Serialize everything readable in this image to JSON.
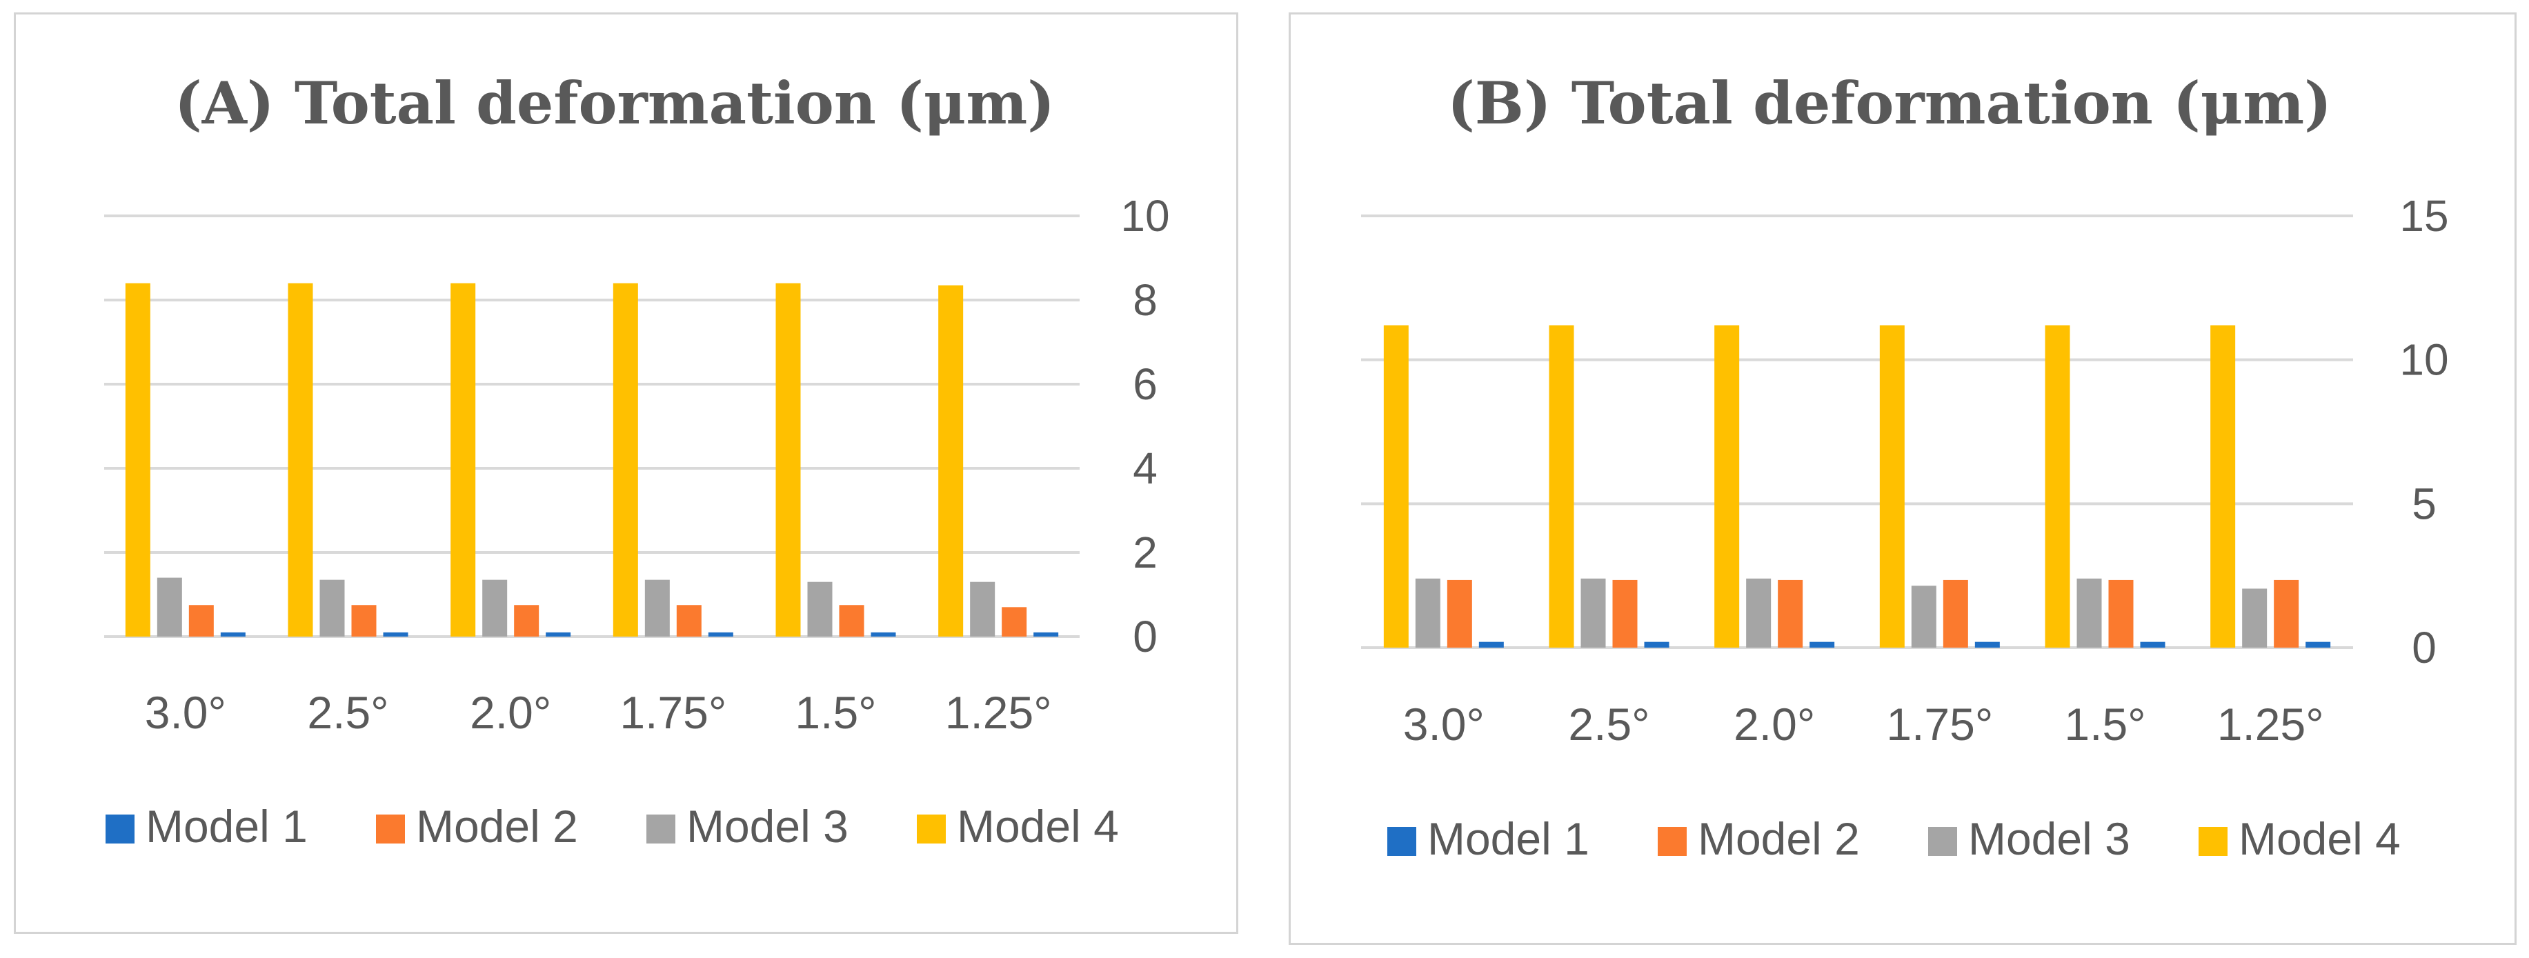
{
  "colors": {
    "Model 1": "#1f6fc5",
    "Model 2": "#fb7a2e",
    "Model 3": "#a5a5a5",
    "Model 4": "#ffc000"
  },
  "chart_data": [
    {
      "type": "bar",
      "title": "(A) Total deformation (μm)",
      "categories": [
        "3.0°",
        "2.5°",
        "2.0°",
        "1.75°",
        "1.5°",
        "1.25°"
      ],
      "series": [
        {
          "name": "Model 1",
          "values": [
            0.1,
            0.1,
            0.1,
            0.1,
            0.1,
            0.1
          ]
        },
        {
          "name": "Model 2",
          "values": [
            0.75,
            0.75,
            0.75,
            0.75,
            0.75,
            0.7
          ]
        },
        {
          "name": "Model 3",
          "values": [
            1.4,
            1.35,
            1.35,
            1.35,
            1.3,
            1.3
          ]
        },
        {
          "name": "Model 4",
          "values": [
            8.4,
            8.4,
            8.4,
            8.4,
            8.4,
            8.35
          ]
        }
      ],
      "ylim": [
        0,
        10
      ],
      "yticks": [
        0,
        2,
        4,
        6,
        8,
        10
      ],
      "yaxis_position": "right",
      "legend": "bottom",
      "xlabel": "",
      "ylabel": ""
    },
    {
      "type": "bar",
      "title": "(B) Total deformation (μm)",
      "categories": [
        "3.0°",
        "2.5°",
        "2.0°",
        "1.75°",
        "1.5°",
        "1.25°"
      ],
      "series": [
        {
          "name": "Model 1",
          "values": [
            0.2,
            0.2,
            0.2,
            0.2,
            0.2,
            0.2
          ]
        },
        {
          "name": "Model 2",
          "values": [
            2.35,
            2.35,
            2.35,
            2.35,
            2.35,
            2.35
          ]
        },
        {
          "name": "Model 3",
          "values": [
            2.4,
            2.4,
            2.4,
            2.15,
            2.4,
            2.05
          ]
        },
        {
          "name": "Model 4",
          "values": [
            11.2,
            11.2,
            11.2,
            11.2,
            11.2,
            11.2
          ]
        }
      ],
      "ylim": [
        0,
        15
      ],
      "yticks": [
        0,
        5,
        10,
        15
      ],
      "yaxis_position": "right",
      "legend": "bottom",
      "xlabel": "",
      "ylabel": ""
    }
  ]
}
